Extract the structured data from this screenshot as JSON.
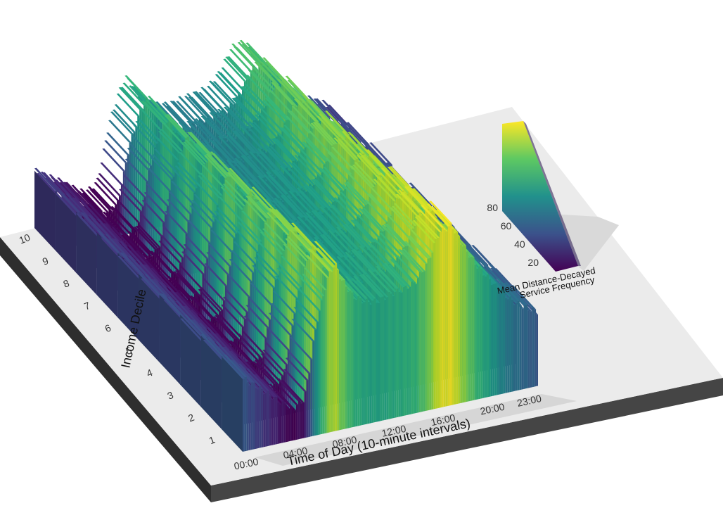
{
  "chart_data": {
    "type": "heatmap",
    "render": "3d-extruded surface",
    "title": "",
    "xlabel": "Time of Day (10-minute intervals)",
    "ylabel": "Income Decile",
    "x_ticks": [
      "00:00",
      "04:00",
      "08:00",
      "12:00",
      "16:00",
      "20:00",
      "23:00"
    ],
    "x_tick_hours": [
      0,
      4,
      8,
      12,
      16,
      20,
      23
    ],
    "y_ticks": [
      "1",
      "2",
      "3",
      "4",
      "5",
      "6",
      "7",
      "8",
      "9",
      "10"
    ],
    "legend": {
      "title_lines": [
        "Mean Distance-Decayed",
        "Service Frequency"
      ],
      "ticks": [
        "20",
        "40",
        "60",
        "80"
      ],
      "tick_values": [
        20,
        40,
        60,
        80
      ],
      "range": [
        15,
        90
      ],
      "colormap": "viridis"
    },
    "x_range_hours": [
      0,
      24
    ],
    "z_range": [
      0,
      90
    ],
    "profile": {
      "hours": [
        0,
        2,
        4,
        5,
        5.5,
        6,
        6.5,
        7,
        7.5,
        8,
        9,
        10,
        11,
        12,
        13,
        14,
        15,
        16,
        17,
        18,
        19,
        20,
        21,
        22,
        23,
        24
      ],
      "values": [
        36,
        26,
        15,
        19,
        35,
        55,
        66,
        77,
        82,
        74,
        64,
        60,
        59,
        61,
        62,
        64,
        72,
        86,
        88,
        76,
        66,
        58,
        50,
        44,
        40,
        36
      ]
    },
    "decile_factors": [
      1.0,
      0.97,
      0.95,
      0.92,
      0.9,
      0.88,
      0.85,
      0.83,
      0.8,
      0.78
    ]
  },
  "colors": {
    "base_top": "#ebebeb",
    "base_side_left": "#2e2e2e",
    "base_side_front": "#4a4a4a"
  }
}
